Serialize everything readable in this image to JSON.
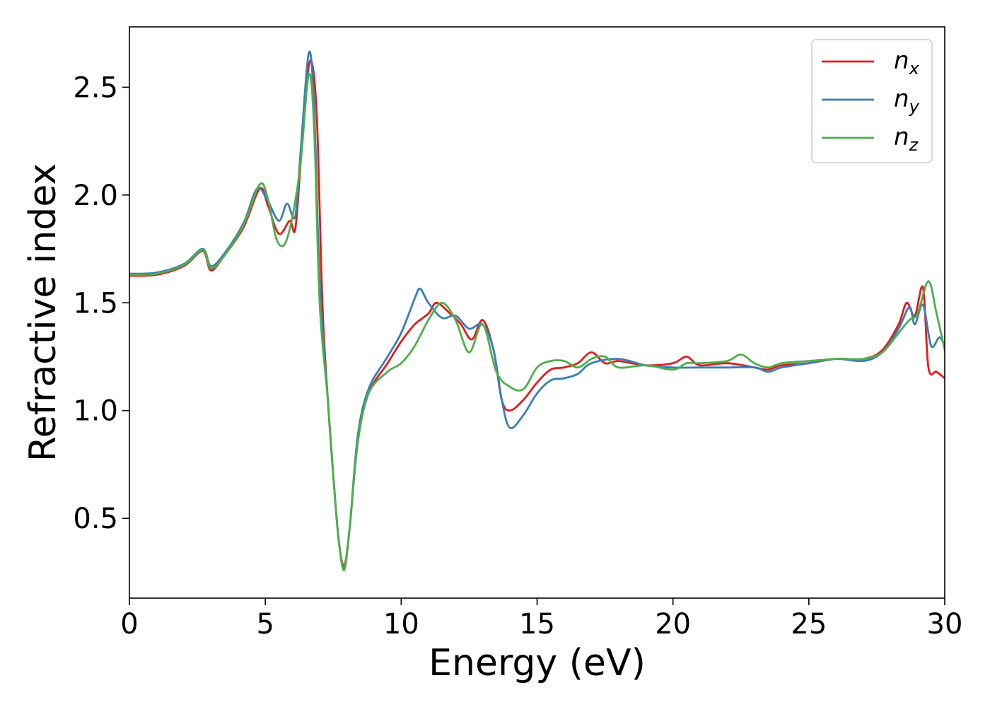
{
  "chart_data": {
    "type": "line",
    "title": "",
    "xlabel": "Energy (eV)",
    "ylabel": "Refractive index",
    "xlim": [
      0,
      30
    ],
    "ylim": [
      0.13,
      2.78
    ],
    "xticks": [
      "0",
      "5",
      "10",
      "15",
      "20",
      "25",
      "30"
    ],
    "yticks": [
      "0.5",
      "1.0",
      "1.5",
      "2.0",
      "2.5"
    ],
    "grid": false,
    "legend_position": "top-right",
    "series": [
      {
        "name": "n",
        "subscript": "x",
        "color": "#e41a1c",
        "points": [
          [
            0,
            1.625
          ],
          [
            1,
            1.63
          ],
          [
            2,
            1.67
          ],
          [
            2.7,
            1.74
          ],
          [
            3.0,
            1.65
          ],
          [
            3.5,
            1.72
          ],
          [
            4.2,
            1.85
          ],
          [
            4.8,
            2.03
          ],
          [
            5.1,
            1.95
          ],
          [
            5.5,
            1.82
          ],
          [
            5.9,
            1.88
          ],
          [
            6.1,
            1.84
          ],
          [
            6.3,
            2.15
          ],
          [
            6.5,
            2.5
          ],
          [
            6.7,
            2.62
          ],
          [
            6.9,
            2.35
          ],
          [
            7.1,
            1.5
          ],
          [
            7.3,
            1.05
          ],
          [
            7.5,
            0.7
          ],
          [
            7.7,
            0.4
          ],
          [
            7.9,
            0.28
          ],
          [
            8.1,
            0.45
          ],
          [
            8.4,
            0.85
          ],
          [
            8.8,
            1.08
          ],
          [
            9.5,
            1.22
          ],
          [
            10,
            1.32
          ],
          [
            10.5,
            1.4
          ],
          [
            11.0,
            1.45
          ],
          [
            11.3,
            1.5
          ],
          [
            11.8,
            1.45
          ],
          [
            12.2,
            1.4
          ],
          [
            12.6,
            1.33
          ],
          [
            13.0,
            1.42
          ],
          [
            13.4,
            1.28
          ],
          [
            13.7,
            1.05
          ],
          [
            14.0,
            1.0
          ],
          [
            14.5,
            1.05
          ],
          [
            15.0,
            1.13
          ],
          [
            15.5,
            1.19
          ],
          [
            16,
            1.2
          ],
          [
            16.5,
            1.22
          ],
          [
            17,
            1.27
          ],
          [
            17.5,
            1.22
          ],
          [
            18,
            1.23
          ],
          [
            19,
            1.21
          ],
          [
            20,
            1.22
          ],
          [
            20.5,
            1.25
          ],
          [
            21,
            1.21
          ],
          [
            22,
            1.22
          ],
          [
            23,
            1.2
          ],
          [
            23.5,
            1.19
          ],
          [
            24,
            1.21
          ],
          [
            25,
            1.22
          ],
          [
            26,
            1.24
          ],
          [
            27,
            1.24
          ],
          [
            27.7,
            1.28
          ],
          [
            28.3,
            1.4
          ],
          [
            28.6,
            1.5
          ],
          [
            28.9,
            1.44
          ],
          [
            29.2,
            1.57
          ],
          [
            29.4,
            1.2
          ],
          [
            29.7,
            1.18
          ],
          [
            30,
            1.15
          ]
        ]
      },
      {
        "name": "n",
        "subscript": "y",
        "color": "#377eb8",
        "points": [
          [
            0,
            1.635
          ],
          [
            1,
            1.64
          ],
          [
            2,
            1.68
          ],
          [
            2.7,
            1.75
          ],
          [
            3.0,
            1.67
          ],
          [
            3.5,
            1.73
          ],
          [
            4.2,
            1.87
          ],
          [
            4.7,
            2.03
          ],
          [
            5.1,
            1.97
          ],
          [
            5.5,
            1.88
          ],
          [
            5.8,
            1.96
          ],
          [
            6.1,
            1.9
          ],
          [
            6.3,
            2.2
          ],
          [
            6.6,
            2.66
          ],
          [
            6.8,
            2.4
          ],
          [
            7.0,
            1.6
          ],
          [
            7.3,
            1.05
          ],
          [
            7.5,
            0.7
          ],
          [
            7.7,
            0.4
          ],
          [
            7.9,
            0.27
          ],
          [
            8.1,
            0.45
          ],
          [
            8.4,
            0.88
          ],
          [
            8.8,
            1.1
          ],
          [
            9.5,
            1.25
          ],
          [
            10,
            1.36
          ],
          [
            10.5,
            1.52
          ],
          [
            10.7,
            1.565
          ],
          [
            11.0,
            1.5
          ],
          [
            11.5,
            1.43
          ],
          [
            12,
            1.44
          ],
          [
            12.5,
            1.38
          ],
          [
            13.0,
            1.4
          ],
          [
            13.4,
            1.28
          ],
          [
            13.7,
            1.05
          ],
          [
            14.0,
            0.92
          ],
          [
            14.5,
            0.98
          ],
          [
            15.0,
            1.08
          ],
          [
            15.5,
            1.14
          ],
          [
            16,
            1.15
          ],
          [
            16.5,
            1.17
          ],
          [
            17,
            1.22
          ],
          [
            18,
            1.24
          ],
          [
            19,
            1.21
          ],
          [
            20,
            1.2
          ],
          [
            21,
            1.2
          ],
          [
            22,
            1.2
          ],
          [
            23,
            1.2
          ],
          [
            23.5,
            1.18
          ],
          [
            24,
            1.2
          ],
          [
            25,
            1.22
          ],
          [
            26,
            1.24
          ],
          [
            27,
            1.23
          ],
          [
            27.7,
            1.27
          ],
          [
            28.3,
            1.38
          ],
          [
            28.7,
            1.48
          ],
          [
            28.9,
            1.4
          ],
          [
            29.2,
            1.49
          ],
          [
            29.5,
            1.3
          ],
          [
            29.8,
            1.34
          ],
          [
            30,
            1.3
          ]
        ]
      },
      {
        "name": "n",
        "subscript": "z",
        "color": "#4daf4a",
        "points": [
          [
            0,
            1.63
          ],
          [
            1,
            1.635
          ],
          [
            2,
            1.675
          ],
          [
            2.7,
            1.745
          ],
          [
            3.0,
            1.66
          ],
          [
            3.5,
            1.72
          ],
          [
            4.2,
            1.86
          ],
          [
            4.8,
            2.05
          ],
          [
            5.1,
            1.98
          ],
          [
            5.4,
            1.8
          ],
          [
            5.7,
            1.77
          ],
          [
            6.0,
            1.9
          ],
          [
            6.3,
            2.15
          ],
          [
            6.6,
            2.56
          ],
          [
            6.8,
            2.3
          ],
          [
            7.0,
            1.5
          ],
          [
            7.3,
            1.05
          ],
          [
            7.5,
            0.7
          ],
          [
            7.7,
            0.4
          ],
          [
            7.9,
            0.26
          ],
          [
            8.1,
            0.45
          ],
          [
            8.4,
            0.85
          ],
          [
            8.8,
            1.08
          ],
          [
            9.5,
            1.18
          ],
          [
            10,
            1.22
          ],
          [
            10.5,
            1.3
          ],
          [
            11.0,
            1.42
          ],
          [
            11.5,
            1.5
          ],
          [
            12,
            1.42
          ],
          [
            12.5,
            1.27
          ],
          [
            13.0,
            1.4
          ],
          [
            13.5,
            1.18
          ],
          [
            14.0,
            1.11
          ],
          [
            14.5,
            1.1
          ],
          [
            15.0,
            1.2
          ],
          [
            15.5,
            1.23
          ],
          [
            16,
            1.23
          ],
          [
            16.5,
            1.2
          ],
          [
            17,
            1.24
          ],
          [
            17.5,
            1.25
          ],
          [
            18,
            1.2
          ],
          [
            19,
            1.21
          ],
          [
            20,
            1.19
          ],
          [
            20.5,
            1.22
          ],
          [
            21,
            1.22
          ],
          [
            22,
            1.23
          ],
          [
            22.5,
            1.26
          ],
          [
            23,
            1.22
          ],
          [
            23.5,
            1.2
          ],
          [
            24,
            1.22
          ],
          [
            25,
            1.23
          ],
          [
            26,
            1.24
          ],
          [
            27,
            1.24
          ],
          [
            27.7,
            1.27
          ],
          [
            28.3,
            1.36
          ],
          [
            28.7,
            1.42
          ],
          [
            29.0,
            1.45
          ],
          [
            29.4,
            1.6
          ],
          [
            29.7,
            1.45
          ],
          [
            30,
            1.28
          ]
        ]
      }
    ]
  }
}
